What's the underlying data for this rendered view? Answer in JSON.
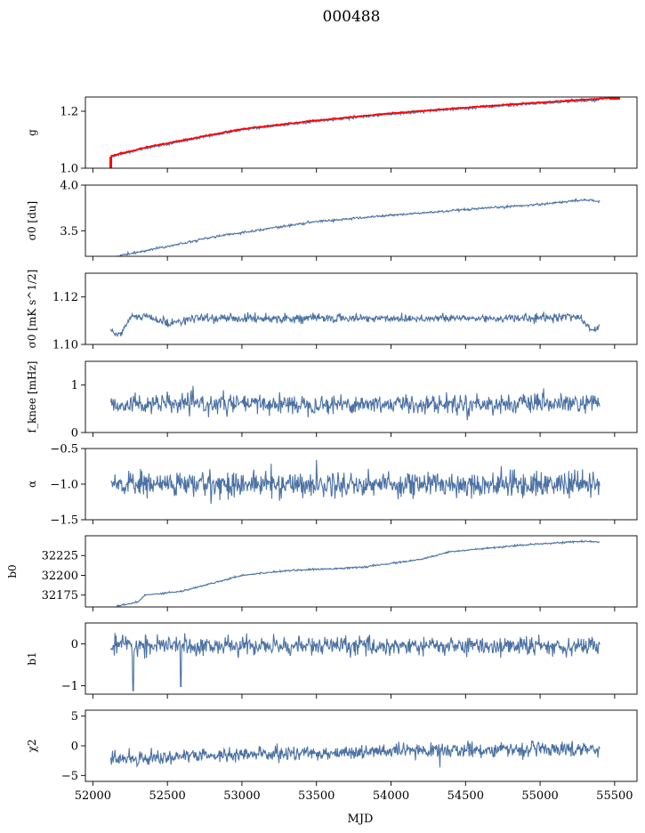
{
  "figure": {
    "title": "000488",
    "x_label": "MJD"
  },
  "chart_data": {
    "type": "line",
    "title": "000488",
    "xlabel": "MJD",
    "xlim": [
      51950,
      55650
    ],
    "x_ticks": [
      52000,
      52500,
      53000,
      53500,
      54000,
      54500,
      55000,
      55500
    ],
    "x_tick_labels": [
      "52000",
      "52500",
      "53000",
      "53500",
      "54000",
      "54500",
      "55000",
      "55500"
    ],
    "series_color": "#4c72a4",
    "overlay_color": "#ff0000",
    "panels": [
      {
        "id": "g",
        "ylabel": "g",
        "ylim": [
          1.0,
          1.25
        ],
        "y_ticks": [
          1.0,
          1.2
        ],
        "y_tick_labels": [
          "1.0",
          "1.2"
        ],
        "x_range": [
          52120,
          55400
        ],
        "noise": 0.002,
        "trend": [
          [
            52120,
            1.04
          ],
          [
            52350,
            1.07
          ],
          [
            52700,
            1.105
          ],
          [
            53000,
            1.135
          ],
          [
            53500,
            1.165
          ],
          [
            54000,
            1.19
          ],
          [
            54500,
            1.21
          ],
          [
            55000,
            1.228
          ],
          [
            55400,
            1.24
          ]
        ],
        "overlay": {
          "x_range": [
            52120,
            55500
          ],
          "noise": 0.001,
          "offset": 0.003,
          "trend": [
            [
              52120,
              1.04
            ],
            [
              52350,
              1.07
            ],
            [
              52700,
              1.105
            ],
            [
              53000,
              1.135
            ],
            [
              53500,
              1.165
            ],
            [
              54000,
              1.19
            ],
            [
              54500,
              1.21
            ],
            [
              55000,
              1.228
            ],
            [
              55500,
              1.245
            ]
          ],
          "spikes": [
            [
              52120,
              1.0
            ]
          ]
        }
      },
      {
        "id": "sigma0_du",
        "ylabel": "σ0 [du]",
        "ylim": [
          3.22,
          4.0
        ],
        "y_ticks": [
          3.5,
          4.0
        ],
        "y_tick_labels": [
          "3.5",
          "4.0"
        ],
        "x_range": [
          52160,
          55400
        ],
        "noise": 0.006,
        "trend": [
          [
            52160,
            3.22
          ],
          [
            52500,
            3.33
          ],
          [
            52800,
            3.43
          ],
          [
            53200,
            3.53
          ],
          [
            53500,
            3.6
          ],
          [
            54000,
            3.67
          ],
          [
            54500,
            3.73
          ],
          [
            55000,
            3.79
          ],
          [
            55300,
            3.84
          ],
          [
            55400,
            3.82
          ]
        ]
      },
      {
        "id": "sigma0_mk",
        "ylabel": "σ0 [mK s^1/2]",
        "ylim": [
          1.1,
          1.13
        ],
        "y_ticks": [
          1.1,
          1.12
        ],
        "y_tick_labels": [
          "1.10",
          "1.12"
        ],
        "x_range": [
          52120,
          55400
        ],
        "noise": 0.0009,
        "trend": [
          [
            52120,
            1.106
          ],
          [
            52180,
            1.104
          ],
          [
            52250,
            1.111
          ],
          [
            52350,
            1.112
          ],
          [
            52500,
            1.109
          ],
          [
            52700,
            1.111
          ],
          [
            53000,
            1.111
          ],
          [
            53500,
            1.111
          ],
          [
            54000,
            1.111
          ],
          [
            54500,
            1.111
          ],
          [
            55000,
            1.111
          ],
          [
            55250,
            1.112
          ],
          [
            55350,
            1.106
          ],
          [
            55400,
            1.107
          ]
        ]
      },
      {
        "id": "fknee",
        "ylabel": "f_knee [mHz]",
        "ylim": [
          0,
          1.5
        ],
        "y_ticks": [
          0,
          1
        ],
        "y_tick_labels": [
          "0",
          "1"
        ],
        "x_range": [
          52120,
          55400
        ],
        "noise": 0.1,
        "trend": [
          [
            52120,
            0.6
          ],
          [
            55400,
            0.6
          ]
        ]
      },
      {
        "id": "alpha",
        "ylabel": "α",
        "ylim": [
          -1.5,
          -0.5
        ],
        "y_ticks": [
          -1.5,
          -1.0,
          -0.5
        ],
        "y_tick_labels": [
          "−1.5",
          "−1.0",
          "−0.5"
        ],
        "x_range": [
          52120,
          55400
        ],
        "noise": 0.09,
        "trend": [
          [
            52120,
            -1.0
          ],
          [
            55400,
            -1.0
          ]
        ]
      },
      {
        "id": "b0",
        "ylabel": "b0",
        "ylim": [
          32160,
          32250
        ],
        "y_ticks": [
          32175,
          32200,
          32225
        ],
        "y_tick_labels": [
          "32175",
          "32200",
          "32225"
        ],
        "x_range": [
          52160,
          55400
        ],
        "noise": 0.5,
        "trend": [
          [
            52160,
            32161
          ],
          [
            52300,
            32166
          ],
          [
            52350,
            32175
          ],
          [
            52600,
            32180
          ],
          [
            52800,
            32190
          ],
          [
            53000,
            32200
          ],
          [
            53300,
            32206
          ],
          [
            53800,
            32210
          ],
          [
            54200,
            32220
          ],
          [
            54400,
            32230
          ],
          [
            54700,
            32235
          ],
          [
            55000,
            32240
          ],
          [
            55300,
            32243
          ],
          [
            55400,
            32242
          ]
        ]
      },
      {
        "id": "b1",
        "ylabel": "b1",
        "ylim": [
          -1.2,
          0.5
        ],
        "y_ticks": [
          -1,
          0
        ],
        "y_tick_labels": [
          "−1",
          "0"
        ],
        "x_range": [
          52120,
          55400
        ],
        "noise": 0.11,
        "trend": [
          [
            52120,
            -0.05
          ],
          [
            55400,
            -0.05
          ]
        ],
        "spikes": [
          [
            52270,
            -1.12
          ],
          [
            52590,
            -1.02
          ]
        ]
      },
      {
        "id": "chi2",
        "ylabel": "χ2",
        "ylim": [
          -6,
          6
        ],
        "y_ticks": [
          -5,
          0,
          5
        ],
        "y_tick_labels": [
          "−5",
          "0",
          "5"
        ],
        "x_range": [
          52120,
          55400
        ],
        "noise": 0.6,
        "trend": [
          [
            52120,
            -2.2
          ],
          [
            52700,
            -1.7
          ],
          [
            53500,
            -1.2
          ],
          [
            54500,
            -0.7
          ],
          [
            55400,
            -0.5
          ]
        ]
      }
    ]
  }
}
